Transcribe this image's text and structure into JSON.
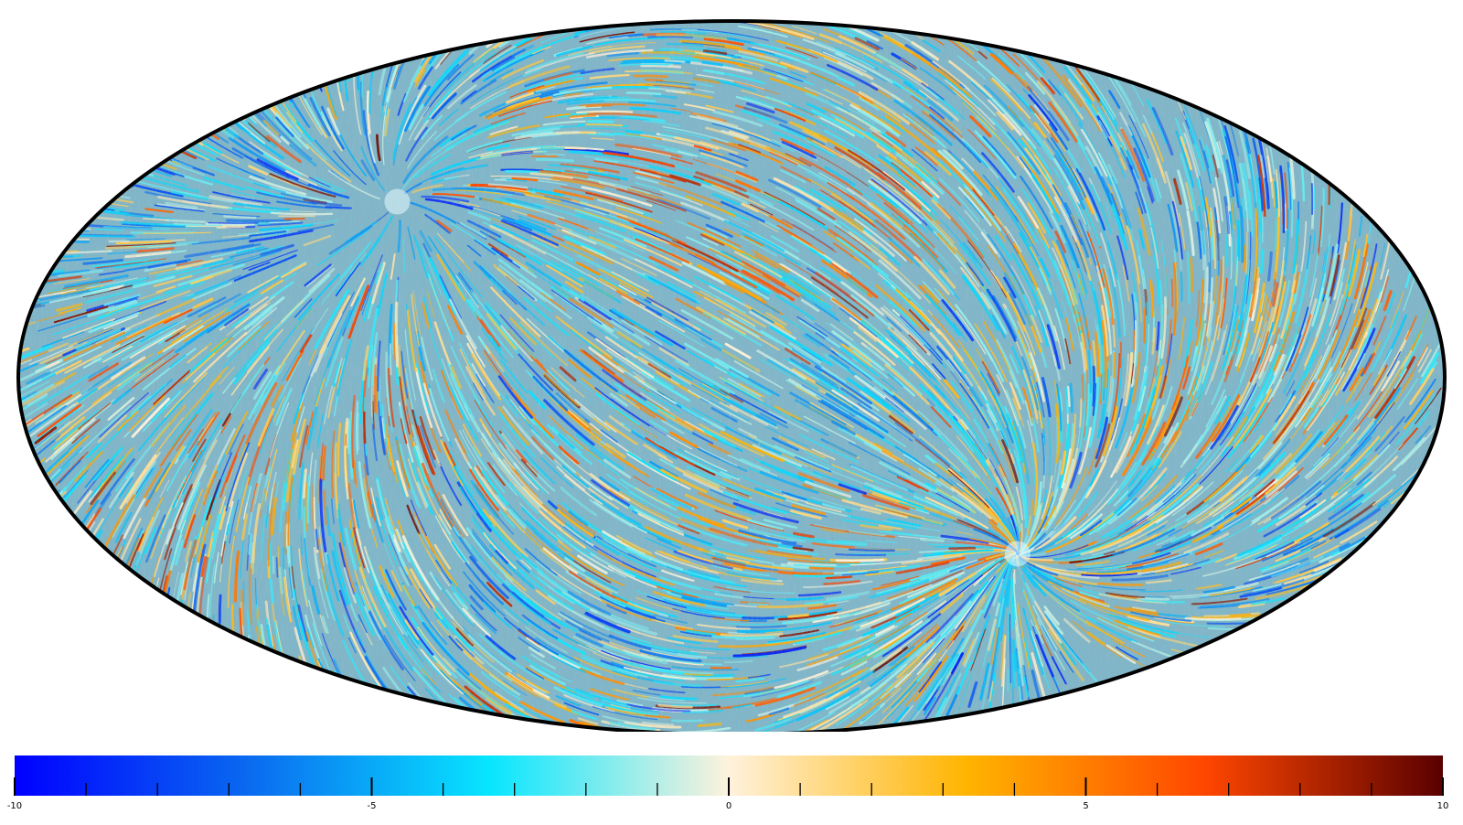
{
  "chart_data": {
    "type": "heatmap",
    "projection": "mollweide",
    "map_style": "line-integral-convolution texture of a vector field on the full sky",
    "colormap": [
      "#0000ff",
      "#0a6cf0",
      "#08e6ff",
      "#fff2dc",
      "#ffb400",
      "#ff4600",
      "#5a0000"
    ],
    "colorbar": {
      "min": -10,
      "max": 10,
      "major_ticks": [
        -10,
        -5,
        0,
        5,
        10
      ],
      "tick_labels": [
        "-10",
        "-5",
        "0",
        "5",
        "10"
      ],
      "minor_ticks_per_major": 5
    },
    "features": [
      {
        "name": "convergence-point-upper-left",
        "lon_deg": -97,
        "lat_deg": 37
      },
      {
        "name": "convergence-point-lower-right",
        "lon_deg": 83,
        "lat_deg": -37
      }
    ],
    "title": "",
    "xlabel": "",
    "ylabel": ""
  }
}
